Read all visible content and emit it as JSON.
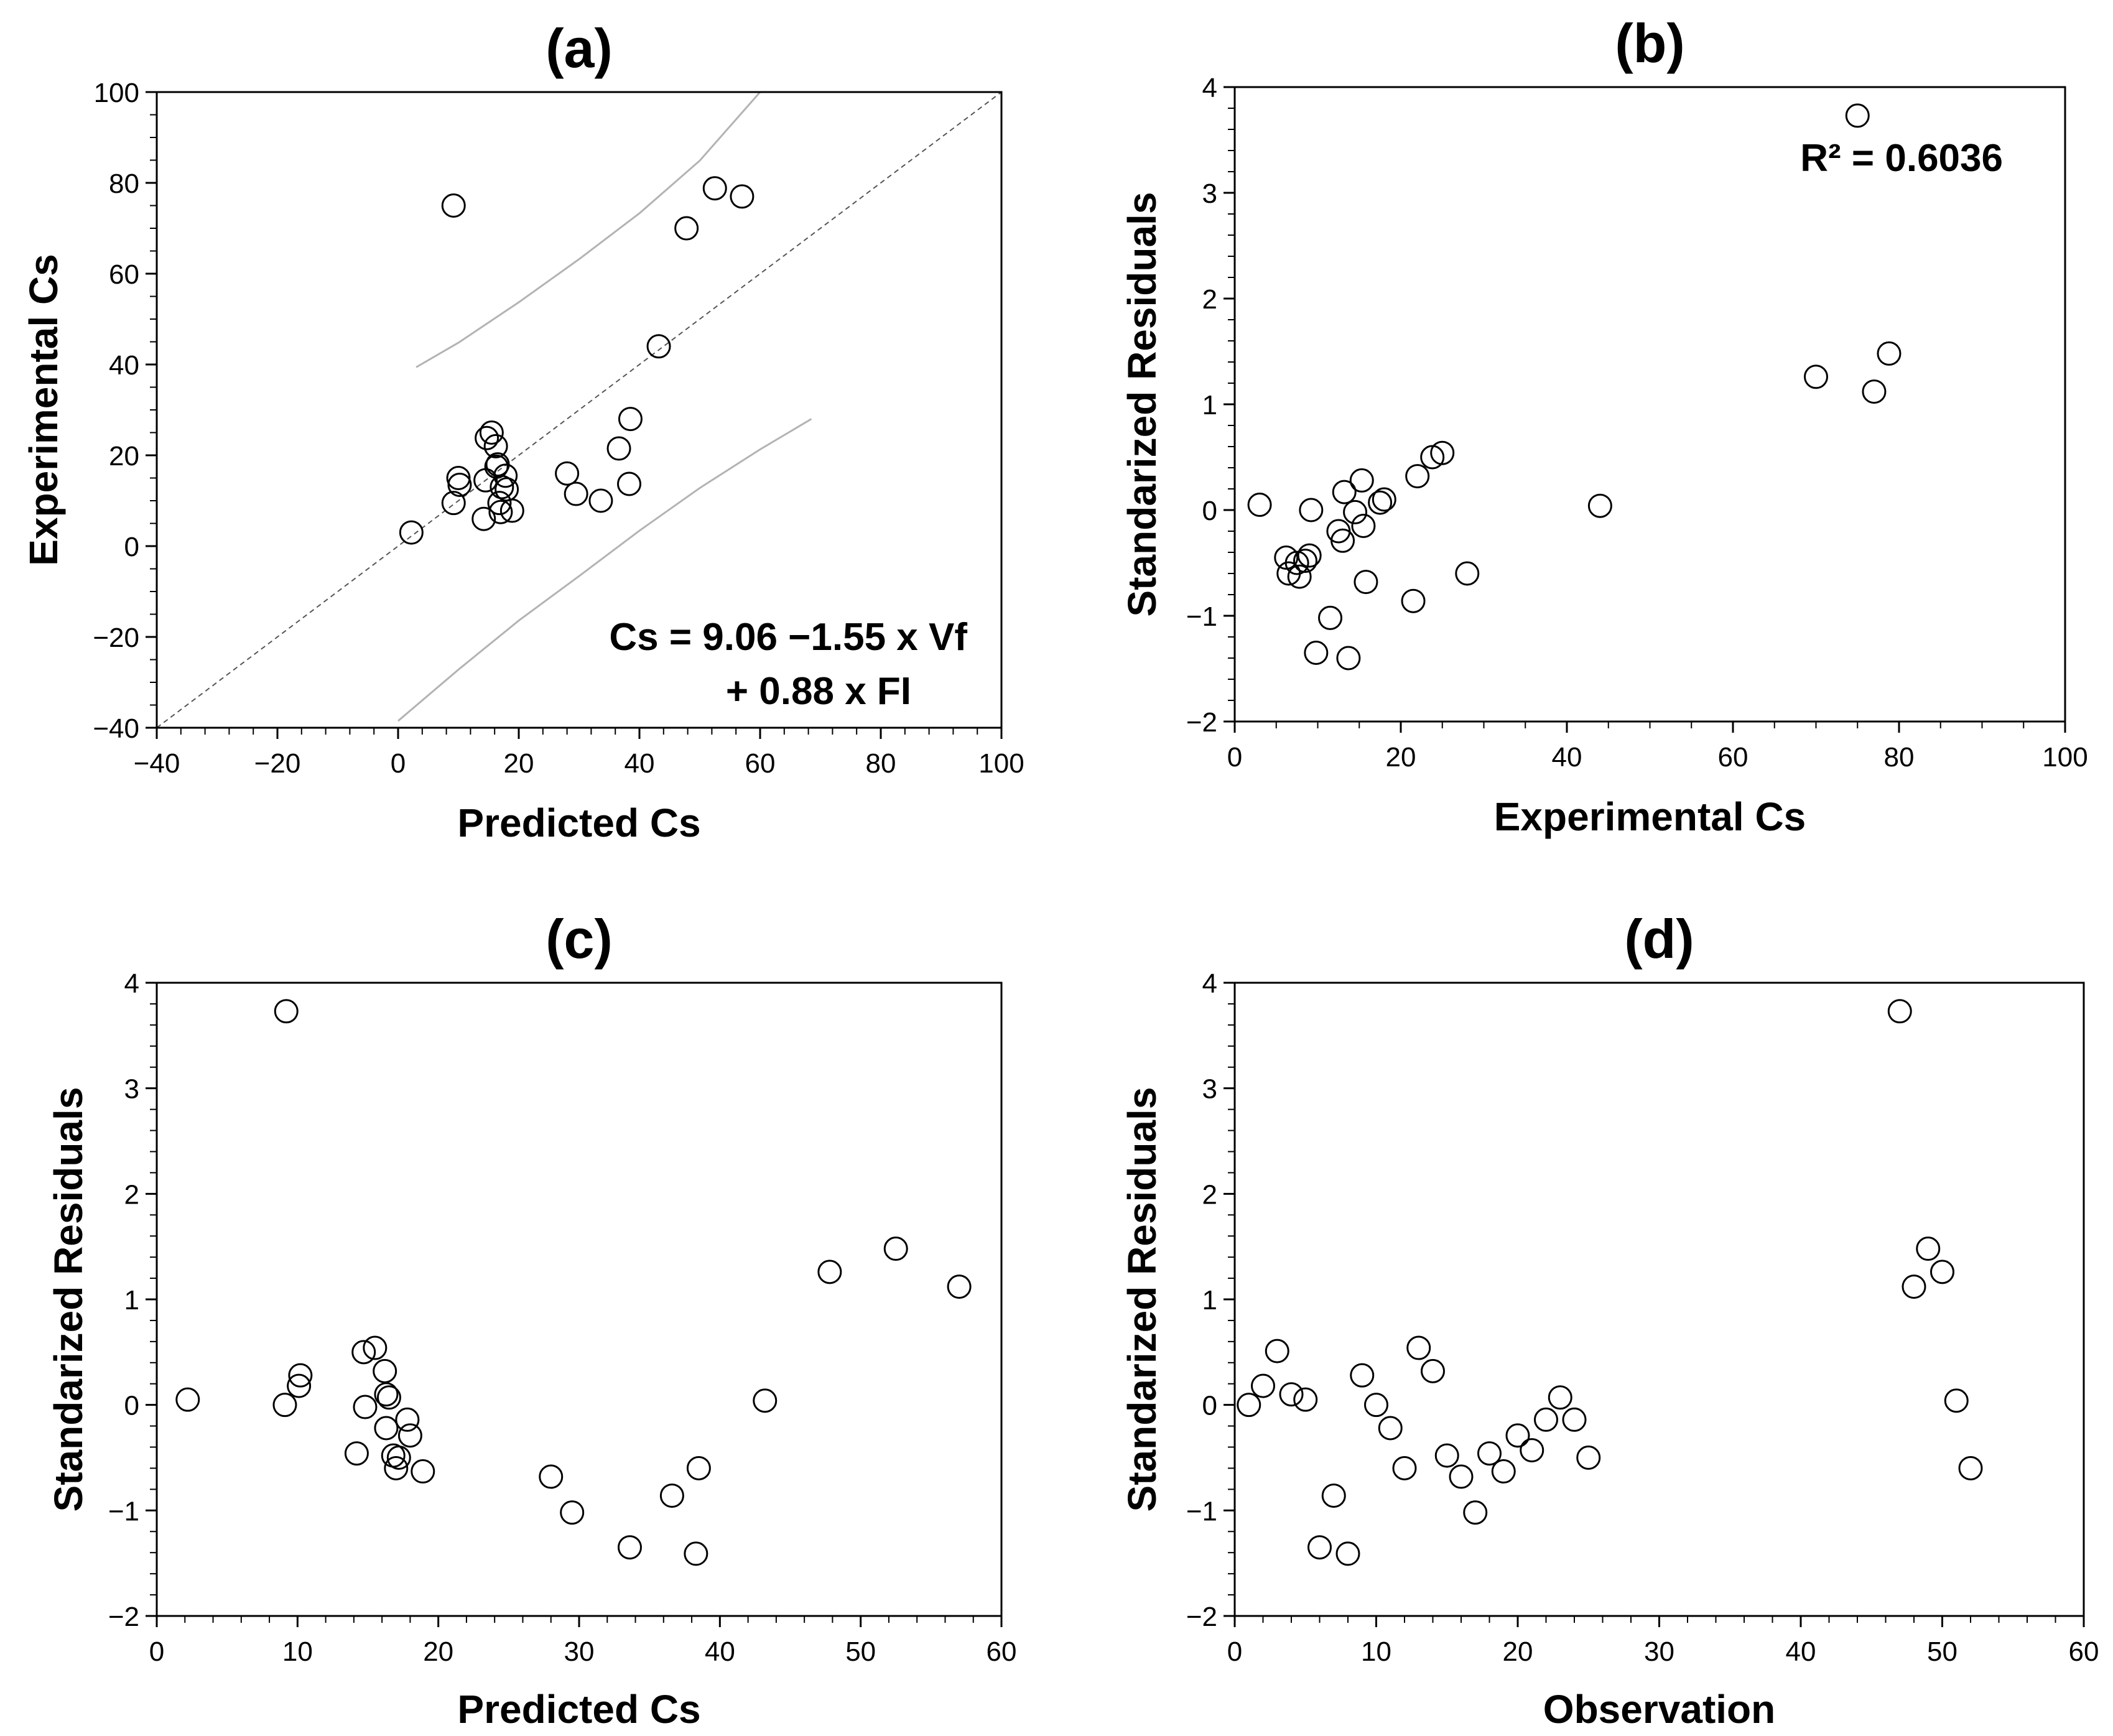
{
  "chart_data": [
    {
      "id": "a",
      "type": "scatter",
      "title": "(a)",
      "xlabel": "Predicted Cs",
      "ylabel": "Experimental Cs",
      "xlim": [
        -40,
        100
      ],
      "ylim": [
        -40,
        100
      ],
      "xticks": [
        -40,
        -20,
        0,
        20,
        40,
        60,
        80,
        100
      ],
      "yticks": [
        -40,
        -20,
        0,
        20,
        40,
        60,
        80,
        100
      ],
      "xtick_labels": [
        "−40",
        "−20",
        "0",
        "20",
        "40",
        "60",
        "80",
        "100"
      ],
      "ytick_labels": [
        "−40",
        "−20",
        "0",
        "20",
        "40",
        "60",
        "80",
        "100"
      ],
      "points": {
        "x": [
          9.2,
          52.5,
          57.0,
          47.8,
          43.2,
          2.2,
          9.2,
          10.2,
          10.0,
          14.2,
          14.5,
          15.5,
          16.2,
          16.5,
          16.3,
          16.8,
          17.0,
          17.2,
          17.8,
          18.0,
          18.9,
          14.7,
          28.0,
          29.5,
          33.6,
          36.6,
          38.3,
          38.5
        ],
        "y": [
          75.0,
          78.8,
          77.0,
          70.0,
          44.0,
          3.0,
          9.5,
          13.5,
          15.0,
          6.0,
          14.5,
          25.0,
          22.0,
          18.0,
          17.5,
          9.5,
          7.5,
          13.0,
          15.5,
          12.5,
          7.8,
          23.8,
          16.0,
          11.5,
          10.0,
          21.5,
          13.7,
          28.0
        ]
      },
      "lines": [
        {
          "name": "identity line",
          "style": "dashed",
          "x": [
            -40,
            100
          ],
          "y": [
            -40,
            100
          ]
        },
        {
          "name": "upper bound",
          "style": "solid-gray",
          "x": [
            3,
            10,
            20,
            30,
            40,
            50,
            60
          ],
          "y": [
            39.4,
            44.8,
            53.7,
            63.2,
            73.3,
            84.9,
            100
          ]
        },
        {
          "name": "lower bound",
          "style": "solid-gray",
          "x": [
            0,
            10,
            20,
            30,
            40,
            50,
            60,
            68.5
          ],
          "y": [
            -38.5,
            -27.2,
            -16.4,
            -6.6,
            3.4,
            12.8,
            21.3,
            28.0
          ]
        }
      ],
      "annotations": [
        "Cs = 9.06 −1.55 x Vf",
        "+ 0.88 x FI"
      ]
    },
    {
      "id": "b",
      "type": "scatter",
      "title": "(b)",
      "xlabel": "Experimental Cs",
      "ylabel": "Standarized Residuals",
      "xlim": [
        0,
        100
      ],
      "ylim": [
        -2,
        4
      ],
      "xticks": [
        0,
        20,
        40,
        60,
        80,
        100
      ],
      "yticks": [
        -2,
        -1,
        0,
        1,
        2,
        3,
        4
      ],
      "xtick_labels": [
        "0",
        "20",
        "40",
        "60",
        "80",
        "100"
      ],
      "ytick_labels": [
        "−2",
        "−1",
        "0",
        "1",
        "2",
        "3",
        "4"
      ],
      "points": {
        "x": [
          3.0,
          6.2,
          6.5,
          7.5,
          7.8,
          8.5,
          9.0,
          9.2,
          9.8,
          11.5,
          12.5,
          13.0,
          13.2,
          13.7,
          14.5,
          15.3,
          15.5,
          15.8,
          17.5,
          18.0,
          21.5,
          22.0,
          23.8,
          25.0,
          28.0,
          44.0,
          70.0,
          75.0,
          77.0,
          78.8
        ],
        "y": [
          0.05,
          -0.45,
          -0.6,
          -0.5,
          -0.63,
          -0.48,
          -0.43,
          0.0,
          -1.35,
          -1.02,
          -0.2,
          -0.29,
          0.17,
          -1.4,
          -0.02,
          0.28,
          -0.15,
          -0.68,
          0.07,
          0.1,
          -0.86,
          0.32,
          0.5,
          0.54,
          -0.6,
          0.04,
          1.26,
          3.73,
          1.12,
          1.48
        ]
      },
      "annotations": [
        "R² = 0.6036"
      ]
    },
    {
      "id": "c",
      "type": "scatter",
      "title": "(c)",
      "xlabel": "Predicted Cs",
      "ylabel": "Standarized Residuals",
      "xlim": [
        0,
        60
      ],
      "ylim": [
        -2,
        4
      ],
      "xticks": [
        0,
        10,
        20,
        30,
        40,
        50,
        60
      ],
      "yticks": [
        -2,
        -1,
        0,
        1,
        2,
        3,
        4
      ],
      "xtick_labels": [
        "0",
        "10",
        "20",
        "30",
        "40",
        "50",
        "60"
      ],
      "ytick_labels": [
        "−2",
        "−1",
        "0",
        "1",
        "2",
        "3",
        "4"
      ],
      "points": {
        "x": [
          2.2,
          9.2,
          9.1,
          10.2,
          10.1,
          14.2,
          14.7,
          14.8,
          15.5,
          16.2,
          16.3,
          16.5,
          16.3,
          16.8,
          17.0,
          17.2,
          17.8,
          18.0,
          18.9,
          28.0,
          29.5,
          33.6,
          36.6,
          38.3,
          38.5,
          43.2,
          47.8,
          52.5,
          57.0
        ],
        "y": [
          0.05,
          3.73,
          0.0,
          0.28,
          0.18,
          -0.46,
          0.5,
          -0.02,
          0.54,
          0.32,
          0.1,
          0.07,
          -0.22,
          -0.48,
          -0.6,
          -0.5,
          -0.14,
          -0.29,
          -0.63,
          -0.68,
          -1.02,
          -1.35,
          -0.86,
          -1.41,
          -0.6,
          0.04,
          1.26,
          1.48,
          1.12
        ]
      }
    },
    {
      "id": "d",
      "type": "scatter",
      "title": "(d)",
      "xlabel": "Observation",
      "ylabel": "Standarized Residuals",
      "xlim": [
        0,
        60
      ],
      "ylim": [
        -2,
        4
      ],
      "xticks": [
        0,
        10,
        20,
        30,
        40,
        50,
        60
      ],
      "yticks": [
        -2,
        -1,
        0,
        1,
        2,
        3,
        4
      ],
      "xtick_labels": [
        "0",
        "10",
        "20",
        "30",
        "40",
        "50",
        "60"
      ],
      "ytick_labels": [
        "−2",
        "−1",
        "0",
        "1",
        "2",
        "3",
        "4"
      ],
      "points": {
        "x": [
          1,
          2,
          3,
          4,
          5,
          6,
          7,
          8,
          9,
          10,
          11,
          12,
          13,
          14,
          15,
          16,
          17,
          18,
          19,
          20,
          21,
          22,
          23,
          24,
          25,
          47,
          48,
          49,
          50,
          51,
          52
        ],
        "y": [
          0.0,
          0.18,
          0.51,
          0.1,
          0.05,
          -1.35,
          -0.86,
          -1.41,
          0.28,
          0.0,
          -0.22,
          -0.6,
          0.54,
          0.32,
          -0.48,
          -0.68,
          -1.02,
          -0.46,
          -0.63,
          -0.29,
          -0.43,
          -0.14,
          0.07,
          -0.14,
          -0.5,
          3.73,
          1.12,
          1.48,
          1.26,
          0.04,
          -0.6
        ]
      }
    }
  ]
}
